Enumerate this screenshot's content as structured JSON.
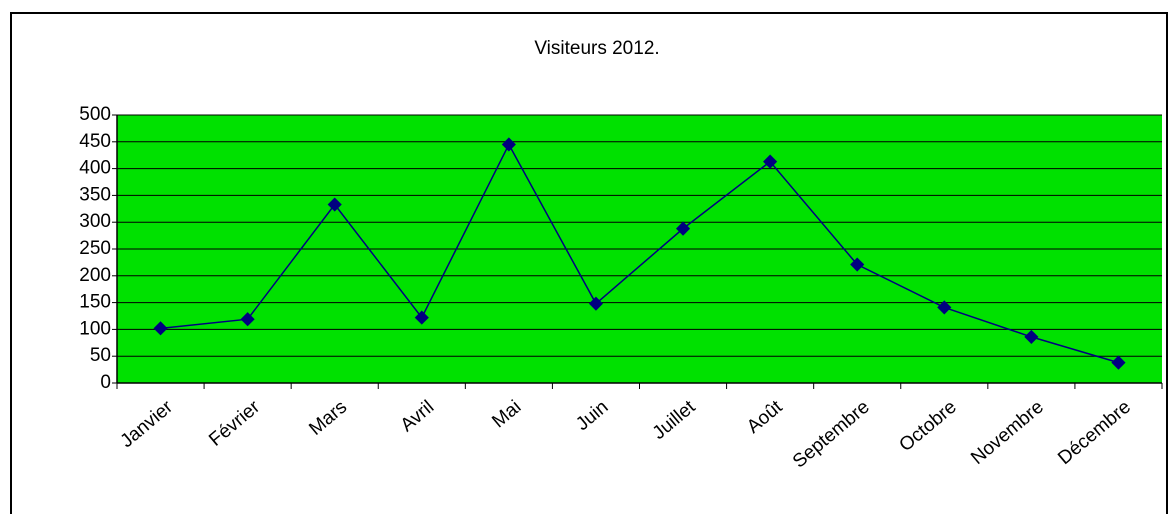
{
  "chart_data": {
    "type": "line",
    "title": "Visiteurs 2012.",
    "categories": [
      "Janvier",
      "Février",
      "Mars",
      "Avril",
      "Mai",
      "Juin",
      "Juillet",
      "Août",
      "Septembre",
      "Octobre",
      "Novembre",
      "Décembre"
    ],
    "values": [
      102,
      119,
      333,
      122,
      445,
      148,
      288,
      413,
      221,
      141,
      86,
      38
    ],
    "color": "#000080",
    "plot_background": "#00e100",
    "ylim": [
      0,
      500
    ],
    "yticks": [
      0,
      50,
      100,
      150,
      200,
      250,
      300,
      350,
      400,
      450,
      500
    ],
    "grid": true
  }
}
